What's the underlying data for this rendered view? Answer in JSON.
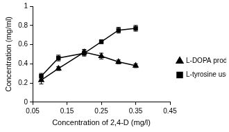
{
  "chart_data": {
    "type": "line",
    "x_label": "Concentration of 2,4-D (mg/l)",
    "y_label": "Concentration (mg/ml)",
    "x": [
      0.075,
      0.125,
      0.2,
      0.25,
      0.3,
      0.35
    ],
    "series": [
      {
        "name": "L-DOPA produced",
        "color": "#000000",
        "marker": "triangle",
        "line_style": "solid",
        "values": [
          0.23,
          0.35,
          0.52,
          0.48,
          0.42,
          0.38
        ],
        "errors": [
          0.04,
          0.02,
          0.03,
          0.03,
          0.02,
          0.02
        ]
      },
      {
        "name": "L-tyrosine used",
        "color": "#000000",
        "marker": "square",
        "line_style": "solid",
        "values": [
          0.27,
          0.46,
          0.51,
          0.63,
          0.75,
          0.77
        ],
        "errors": [
          0.03,
          0.03,
          0.03,
          0.02,
          0.03,
          0.03
        ]
      }
    ],
    "xlim": [
      0.05,
      0.45
    ],
    "xticks": [
      0.05,
      0.15,
      0.25,
      0.35,
      0.45
    ],
    "ylim": [
      0,
      1
    ],
    "yticks": [
      0,
      0.2,
      0.4,
      0.6,
      0.8,
      1
    ],
    "grid": false,
    "legend": "right"
  }
}
